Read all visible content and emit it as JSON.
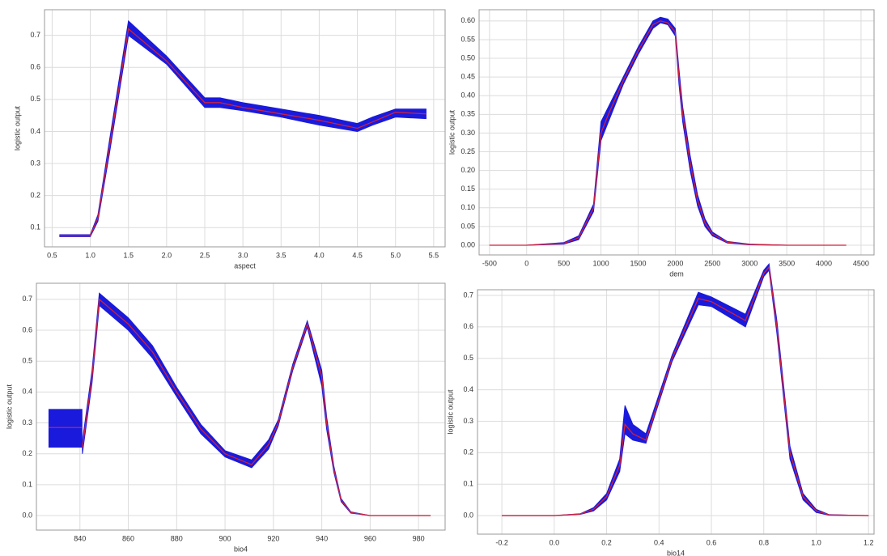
{
  "chart_data": [
    {
      "type": "line",
      "xlabel": "aspect",
      "ylabel": "logistic output",
      "color": "#d0203a",
      "band_color": "#1a1adc",
      "grid": true,
      "xlim": [
        0.4,
        5.65
      ],
      "ylim": [
        0.04,
        0.78
      ],
      "xticks": [
        0.5,
        {
          "value": 1,
          "label": "1.0"
        },
        1.5,
        {
          "value": 2,
          "label": "2.0"
        },
        2.5,
        {
          "value": 3,
          "label": "3.0"
        },
        3.5,
        {
          "value": 4,
          "label": "4.0"
        },
        4.5,
        {
          "value": 5,
          "label": "5.0"
        },
        5.5
      ],
      "yticks": [
        0.1,
        0.2,
        0.3,
        0.4,
        0.5,
        0.6,
        0.7
      ],
      "x": [
        0.6,
        1.0,
        1.1,
        1.25,
        1.5,
        2.0,
        2.5,
        2.7,
        3.0,
        3.5,
        4.0,
        4.5,
        4.7,
        5.0,
        5.4
      ],
      "values": [
        0.075,
        0.075,
        0.13,
        0.35,
        0.72,
        0.62,
        0.49,
        0.49,
        0.475,
        0.455,
        0.435,
        0.41,
        0.43,
        0.46,
        0.455
      ],
      "lower": [
        0.072,
        0.072,
        0.12,
        0.33,
        0.7,
        0.61,
        0.475,
        0.475,
        0.465,
        0.445,
        0.42,
        0.4,
        0.42,
        0.445,
        0.44
      ],
      "upper": [
        0.078,
        0.078,
        0.14,
        0.37,
        0.745,
        0.635,
        0.505,
        0.505,
        0.49,
        0.47,
        0.45,
        0.425,
        0.445,
        0.47,
        0.47
      ]
    },
    {
      "type": "line",
      "xlabel": "dem",
      "ylabel": "logistic output",
      "color": "#d0203a",
      "band_color": "#1a1adc",
      "grid": true,
      "xlim": [
        -640,
        4675
      ],
      "ylim": [
        -0.026,
        0.63
      ],
      "xticks": [
        -500,
        0,
        500,
        1000,
        1500,
        2000,
        2500,
        3000,
        3500,
        4000,
        4500
      ],
      "yticks": [
        {
          "value": 0,
          "label": "0.00"
        },
        0.05,
        {
          "value": 0.1,
          "label": "0.10"
        },
        0.15,
        {
          "value": 0.2,
          "label": "0.20"
        },
        0.25,
        {
          "value": 0.3,
          "label": "0.30"
        },
        0.35,
        {
          "value": 0.4,
          "label": "0.40"
        },
        0.45,
        {
          "value": 0.5,
          "label": "0.50"
        },
        0.55,
        {
          "value": 0.6,
          "label": "0.60"
        }
      ],
      "x": [
        -500,
        0,
        500,
        700,
        900,
        1000,
        1100,
        1300,
        1500,
        1700,
        1800,
        1900,
        2000,
        2050,
        2100,
        2200,
        2300,
        2400,
        2500,
        2700,
        3000,
        3500,
        4300
      ],
      "values": [
        0,
        0,
        0.005,
        0.02,
        0.1,
        0.3,
        0.35,
        0.44,
        0.52,
        0.59,
        0.6,
        0.595,
        0.57,
        0.45,
        0.35,
        0.22,
        0.12,
        0.06,
        0.03,
        0.008,
        0.002,
        0,
        0
      ],
      "lower": [
        0,
        0,
        0.003,
        0.015,
        0.09,
        0.28,
        0.33,
        0.43,
        0.51,
        0.58,
        0.595,
        0.59,
        0.56,
        0.43,
        0.33,
        0.2,
        0.105,
        0.05,
        0.025,
        0.006,
        0.001,
        0,
        0
      ],
      "upper": [
        0,
        0,
        0.007,
        0.025,
        0.11,
        0.33,
        0.37,
        0.45,
        0.53,
        0.6,
        0.61,
        0.605,
        0.58,
        0.47,
        0.37,
        0.24,
        0.135,
        0.07,
        0.035,
        0.01,
        0.003,
        0,
        0
      ]
    },
    {
      "type": "line",
      "xlabel": "bio4",
      "ylabel": "logistic output",
      "color": "#d0203a",
      "band_color": "#1a1adc",
      "grid": true,
      "xlim": [
        822,
        991
      ],
      "ylim": [
        -0.047,
        0.752
      ],
      "xticks": [
        840,
        860,
        880,
        900,
        920,
        940,
        960,
        980
      ],
      "yticks": [
        {
          "value": 0,
          "label": "0.0"
        },
        0.1,
        0.2,
        0.3,
        0.4,
        0.5,
        0.6,
        0.7
      ],
      "x": [
        841,
        845,
        848,
        860,
        870,
        880,
        890,
        900,
        911,
        918,
        922,
        928,
        934,
        940,
        942,
        945,
        948,
        952,
        960,
        985
      ],
      "values": [
        0.22,
        0.45,
        0.7,
        0.62,
        0.53,
        0.4,
        0.28,
        0.2,
        0.165,
        0.23,
        0.3,
        0.48,
        0.62,
        0.45,
        0.3,
        0.15,
        0.05,
        0.01,
        0,
        0
      ],
      "lower": [
        0.2,
        0.43,
        0.68,
        0.6,
        0.51,
        0.385,
        0.265,
        0.19,
        0.155,
        0.215,
        0.29,
        0.47,
        0.61,
        0.42,
        0.28,
        0.14,
        0.045,
        0.008,
        0,
        0
      ],
      "upper": [
        0.24,
        0.47,
        0.72,
        0.64,
        0.55,
        0.415,
        0.295,
        0.21,
        0.18,
        0.245,
        0.31,
        0.49,
        0.63,
        0.47,
        0.32,
        0.16,
        0.055,
        0.012,
        0,
        0
      ],
      "box": {
        "x": [
          827,
          841
        ],
        "lower": 0.22,
        "upper": 0.345,
        "mean": 0.285
      }
    },
    {
      "type": "line",
      "xlabel": "bio14",
      "ylabel": "logistic output",
      "color": "#d0203a",
      "band_color": "#1a1adc",
      "grid": true,
      "xlim": [
        -0.293,
        1.221
      ],
      "ylim": [
        -0.059,
        0.718
      ],
      "xticks": [
        -0.2,
        {
          "value": 0,
          "label": "0.0"
        },
        0.2,
        0.4,
        0.6,
        0.8,
        {
          "value": 1,
          "label": "1.0"
        },
        1.2
      ],
      "yticks": [
        {
          "value": 0,
          "label": "0.0"
        },
        0.1,
        0.2,
        0.3,
        0.4,
        0.5,
        0.6,
        0.7
      ],
      "x": [
        -0.2,
        0.0,
        0.1,
        0.15,
        0.2,
        0.25,
        0.27,
        0.3,
        0.35,
        0.45,
        0.55,
        0.6,
        0.73,
        0.8,
        0.82,
        0.85,
        0.9,
        0.95,
        1.0,
        1.05,
        1.2
      ],
      "values": [
        0,
        0,
        0.005,
        0.02,
        0.06,
        0.16,
        0.29,
        0.26,
        0.24,
        0.5,
        0.69,
        0.68,
        0.62,
        0.77,
        0.79,
        0.6,
        0.2,
        0.06,
        0.015,
        0.002,
        0
      ],
      "lower": [
        0,
        0,
        0.004,
        0.015,
        0.05,
        0.14,
        0.26,
        0.24,
        0.23,
        0.49,
        0.67,
        0.665,
        0.6,
        0.76,
        0.78,
        0.58,
        0.18,
        0.05,
        0.01,
        0.001,
        0
      ],
      "upper": [
        0,
        0,
        0.006,
        0.025,
        0.07,
        0.18,
        0.35,
        0.29,
        0.26,
        0.51,
        0.71,
        0.695,
        0.64,
        0.78,
        0.8,
        0.62,
        0.22,
        0.07,
        0.02,
        0.003,
        0
      ]
    }
  ]
}
